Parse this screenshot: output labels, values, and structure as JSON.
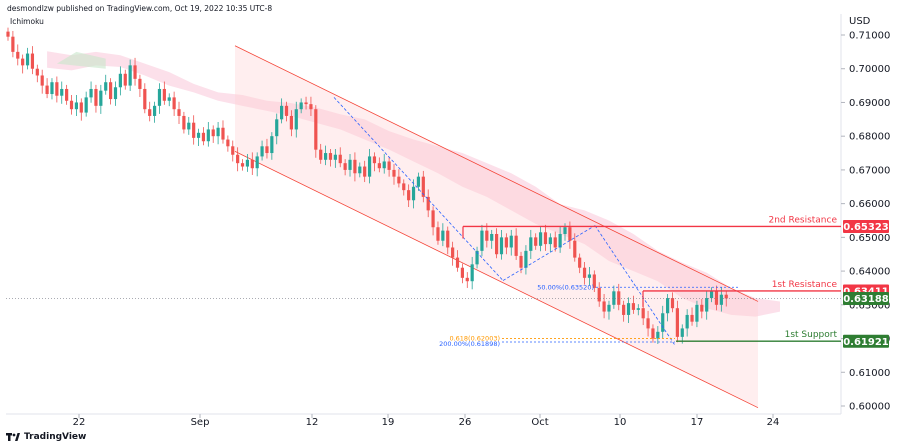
{
  "header": {
    "publisher": "desmondlzw published on TradingView.com, Oct 19, 2022 10:35 UTC-8",
    "indicator": "Ichimoku",
    "currency": "USD"
  },
  "footer": {
    "logo_text": "TradingView"
  },
  "colors": {
    "bull": "#26a69a",
    "bear": "#ef5350",
    "channel": "#f44336",
    "resistance": "#f23645",
    "support": "#2e7d32",
    "current": "#2e7d32",
    "fib_blue": "#2962ff",
    "fib_orange": "#ff9800"
  },
  "chart_data": {
    "type": "candlestick",
    "ylim": [
      0.598,
      0.714
    ],
    "y_ticks": [
      "0.71000",
      "0.70000",
      "0.69000",
      "0.68000",
      "0.67000",
      "0.66000",
      "0.65000",
      "0.64000",
      "0.63000",
      "0.62000",
      "0.61000",
      "0.60000"
    ],
    "x_ticks": [
      "22",
      "Sep",
      "12",
      "19",
      "26",
      "Oct",
      "10",
      "17",
      "24"
    ],
    "closes": [
      0.7095,
      0.705,
      0.703,
      0.701,
      0.7045,
      0.7,
      0.698,
      0.695,
      0.6925,
      0.696,
      0.692,
      0.694,
      0.6905,
      0.688,
      0.69,
      0.687,
      0.6915,
      0.694,
      0.689,
      0.6935,
      0.696,
      0.691,
      0.6945,
      0.6985,
      0.695,
      0.701,
      0.697,
      0.694,
      0.688,
      0.686,
      0.689,
      0.694,
      0.6905,
      0.6915,
      0.688,
      0.686,
      0.682,
      0.684,
      0.6795,
      0.681,
      0.6785,
      0.682,
      0.68,
      0.6825,
      0.679,
      0.677,
      0.6745,
      0.672,
      0.671,
      0.673,
      0.6705,
      0.674,
      0.677,
      0.675,
      0.68,
      0.685,
      0.689,
      0.686,
      0.682,
      0.688,
      0.69,
      0.6895,
      0.688,
      0.676,
      0.673,
      0.675,
      0.673,
      0.6745,
      0.672,
      0.67,
      0.673,
      0.669,
      0.671,
      0.668,
      0.674,
      0.672,
      0.6705,
      0.6725,
      0.67,
      0.668,
      0.666,
      0.664,
      0.661,
      0.665,
      0.668,
      0.662,
      0.658,
      0.653,
      0.649,
      0.652,
      0.647,
      0.644,
      0.641,
      0.638,
      0.637,
      0.642,
      0.646,
      0.652,
      0.649,
      0.651,
      0.645,
      0.65,
      0.647,
      0.6505,
      0.6445,
      0.641,
      0.646,
      0.65,
      0.6475,
      0.6515,
      0.648,
      0.65,
      0.647,
      0.651,
      0.653,
      0.649,
      0.644,
      0.641,
      0.638,
      0.639,
      0.635,
      0.631,
      0.628,
      0.63,
      0.634,
      0.63,
      0.627,
      0.6305,
      0.6285,
      0.629,
      0.626,
      0.623,
      0.62,
      0.622,
      0.6275,
      0.632,
      0.629,
      0.6205,
      0.623,
      0.627,
      0.625,
      0.63,
      0.628,
      0.632,
      0.634,
      0.63,
      0.633,
      0.6319
    ],
    "x_range": [
      0,
      176
    ],
    "channel_upper": {
      "x1": 28,
      "y1": 0.7068,
      "x2": 92,
      "y2": 0.631
    },
    "channel_lower": {
      "x1": 28,
      "y1": 0.6755,
      "x2": 92,
      "y2": 0.5995
    },
    "channel_fill_end_x": 90,
    "levels": [
      {
        "name": "2nd Resistance",
        "value": 0.65323,
        "tag": "0.65323",
        "x_start": 56
      },
      {
        "name": "1st Resistance",
        "value": 0.63411,
        "tag": "0.63411",
        "x_start": 77
      },
      {
        "name": "1st Support",
        "value": 0.61921,
        "tag": "0.61921",
        "x_start": 80
      }
    ],
    "current_price": {
      "value": 0.63188,
      "tag": "0.63188"
    },
    "fib_50": {
      "label": "50.00%(0.63520)",
      "value": 0.6352
    },
    "fib_618": {
      "label": "0.618(0.62003)",
      "value": 0.62003
    },
    "fib_200": {
      "label": "200.00%(0.61898)",
      "value": 0.61898
    },
    "zigzag_x": [
      40,
      60,
      71,
      81
    ],
    "zigzag_y": [
      0.6915,
      0.6372,
      0.6535,
      0.618
    ],
    "kumo_top": [
      0.7052,
      0.704,
      0.705,
      0.704,
      0.7015,
      0.699,
      0.6955,
      0.693,
      0.6922,
      0.6905,
      0.6898,
      0.6885,
      0.6865,
      0.685,
      0.6815,
      0.679,
      0.677,
      0.675,
      0.672,
      0.669,
      0.665,
      0.6598,
      0.658,
      0.655,
      0.651,
      0.646,
      0.6425,
      0.6395,
      0.635,
      0.632,
      0.631
    ],
    "kumo_bottom": [
      0.7003,
      0.6995,
      0.701,
      0.7005,
      0.698,
      0.695,
      0.693,
      0.6905,
      0.689,
      0.6875,
      0.686,
      0.684,
      0.682,
      0.679,
      0.676,
      0.6725,
      0.669,
      0.665,
      0.662,
      0.658,
      0.654,
      0.651,
      0.648,
      0.643,
      0.64,
      0.637,
      0.632,
      0.629,
      0.627,
      0.6265,
      0.628
    ]
  }
}
